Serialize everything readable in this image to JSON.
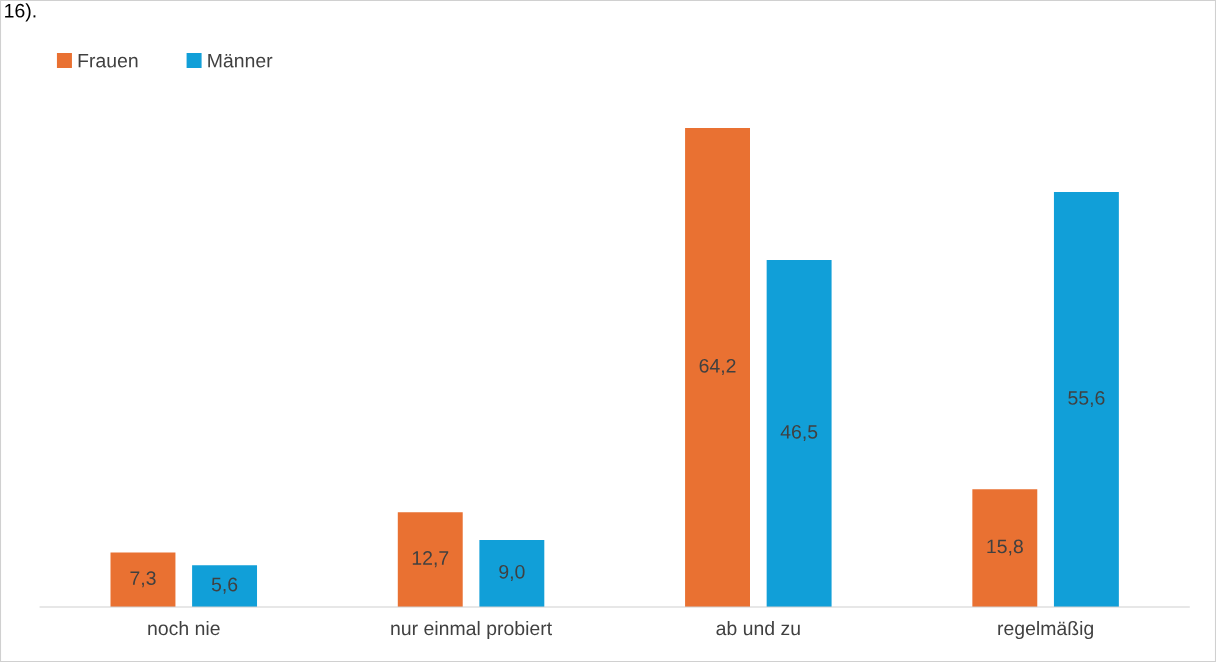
{
  "chart_data": {
    "type": "bar",
    "categories": [
      "noch nie",
      "nur einmal probiert",
      "ab und zu",
      "regelmäßig"
    ],
    "series": [
      {
        "name": "Frauen",
        "color": "#e97132",
        "values": [
          7.3,
          12.7,
          64.2,
          15.8
        ],
        "value_labels": [
          "7,3",
          "12,7",
          "64,2",
          "15,8"
        ]
      },
      {
        "name": "Männer",
        "color": "#119fd8",
        "values": [
          5.6,
          9.0,
          46.5,
          55.6
        ],
        "value_labels": [
          "5,6",
          "9,0",
          "46,5",
          "55,6"
        ]
      }
    ],
    "annotations": [
      "16)."
    ],
    "legend": "top left",
    "grid": false
  }
}
